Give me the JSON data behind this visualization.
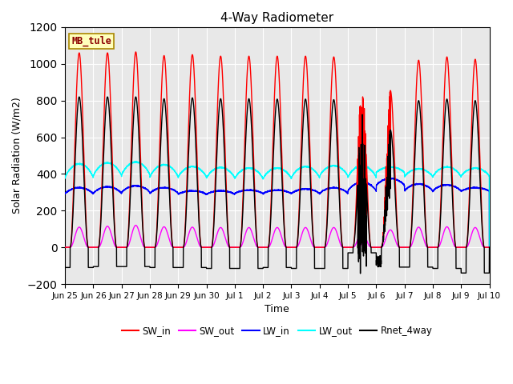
{
  "title": "4-Way Radiometer",
  "xlabel": "Time",
  "ylabel": "Solar Radiation (W/m2)",
  "ylim": [
    -200,
    1200
  ],
  "yticks": [
    -200,
    0,
    200,
    400,
    600,
    800,
    1000,
    1200
  ],
  "x_tick_labels": [
    "Jun 25",
    "Jun 26",
    "Jun 27",
    "Jun 28",
    "Jun 29",
    "Jun 30",
    "Jul 1",
    "Jul 2",
    "Jul 3",
    "Jul 4",
    "Jul 5",
    "Jul 6",
    "Jul 7",
    "Jul 8",
    "Jul 9",
    "Jul 10"
  ],
  "station_label": "MB_tule",
  "axes_bg_color": "#e8e8e8",
  "series": {
    "SW_in": {
      "color": "#ff0000",
      "lw": 1.0
    },
    "SW_out": {
      "color": "#ff00ff",
      "lw": 1.0
    },
    "LW_in": {
      "color": "#0000ff",
      "lw": 1.0
    },
    "LW_out": {
      "color": "#00ffff",
      "lw": 1.0
    },
    "Rnet_4way": {
      "color": "#000000",
      "lw": 1.0
    }
  },
  "n_days": 15,
  "SW_in_peak": [
    1060,
    1060,
    1065,
    1045,
    1050,
    1042,
    1042,
    1042,
    1042,
    1038,
    910,
    855,
    1020,
    1038,
    1025
  ],
  "SW_out_peak": [
    110,
    115,
    120,
    112,
    110,
    108,
    108,
    108,
    108,
    108,
    80,
    95,
    110,
    112,
    108
  ],
  "LW_in_night": [
    290,
    292,
    298,
    293,
    288,
    288,
    292,
    292,
    292,
    292,
    305,
    335,
    305,
    305,
    305
  ],
  "LW_in_day": [
    325,
    330,
    335,
    325,
    308,
    308,
    312,
    312,
    318,
    325,
    355,
    375,
    345,
    340,
    325
  ],
  "LW_out_night": [
    375,
    385,
    390,
    380,
    380,
    375,
    372,
    372,
    375,
    385,
    378,
    405,
    382,
    382,
    385
  ],
  "LW_out_day": [
    455,
    460,
    465,
    450,
    440,
    435,
    432,
    432,
    440,
    445,
    445,
    438,
    428,
    438,
    432
  ],
  "Rnet_peak": [
    820,
    820,
    820,
    810,
    815,
    810,
    810,
    808,
    808,
    805,
    640,
    640,
    800,
    808,
    800
  ],
  "Rnet_night": [
    -110,
    -105,
    -105,
    -110,
    -110,
    -115,
    -115,
    -110,
    -115,
    -115,
    -30,
    -108,
    -108,
    -115,
    -140
  ],
  "solar_halfwidth": 0.32,
  "solar_phase": 0.5
}
